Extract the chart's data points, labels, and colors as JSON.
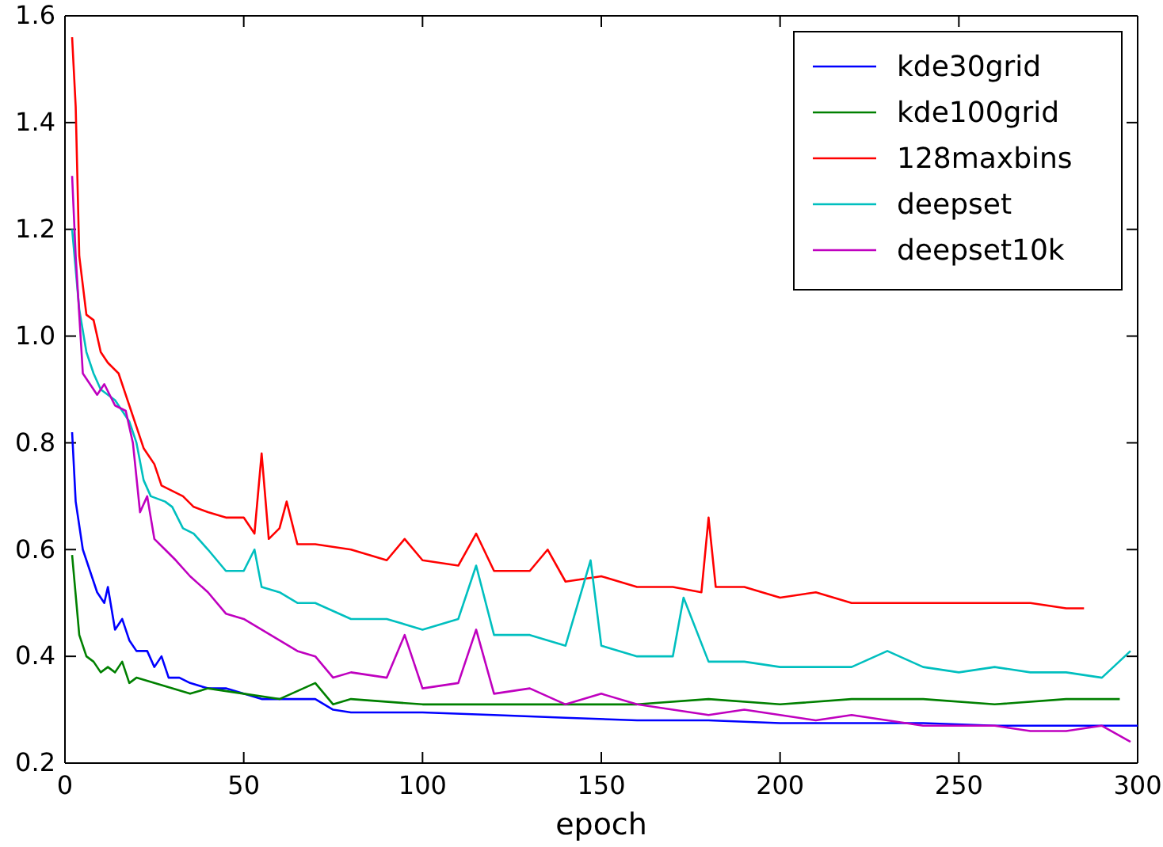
{
  "chart_data": {
    "type": "line",
    "xlabel": "epoch",
    "xlim": [
      0,
      300
    ],
    "xticks": [
      0,
      50,
      100,
      150,
      200,
      250,
      300
    ],
    "ylim": [
      0.2,
      1.6
    ],
    "yticks": [
      {
        "value": 0.2,
        "label": "0.2"
      },
      {
        "value": 0.4,
        "label": "0.4"
      },
      {
        "value": 0.6,
        "label": "0.6"
      },
      {
        "value": 0.8,
        "label": "0.8"
      },
      {
        "value": 1.0,
        "label": "1.0"
      },
      {
        "value": 1.2,
        "label": "1.2"
      },
      {
        "value": 1.4,
        "label": "1.4"
      },
      {
        "value": 1.6,
        "label": "1.6"
      }
    ],
    "grid": false,
    "legend": "top right",
    "marker": "none",
    "line_style": "solid",
    "series": [
      {
        "name": "kde30grid",
        "color": "#0000ff",
        "x": [
          2,
          3,
          5,
          7,
          9,
          11,
          12,
          14,
          16,
          18,
          20,
          23,
          25,
          27,
          29,
          32,
          35,
          40,
          45,
          50,
          55,
          60,
          70,
          75,
          80,
          100,
          120,
          140,
          160,
          180,
          200,
          220,
          240,
          260,
          280,
          300
        ],
        "values": [
          0.82,
          0.69,
          0.6,
          0.56,
          0.52,
          0.5,
          0.53,
          0.45,
          0.47,
          0.43,
          0.41,
          0.41,
          0.38,
          0.4,
          0.36,
          0.36,
          0.35,
          0.34,
          0.34,
          0.33,
          0.32,
          0.32,
          0.32,
          0.3,
          0.295,
          0.295,
          0.29,
          0.285,
          0.28,
          0.28,
          0.275,
          0.275,
          0.275,
          0.27,
          0.27,
          0.27
        ]
      },
      {
        "name": "kde100grid",
        "color": "#008000",
        "x": [
          2,
          4,
          6,
          8,
          10,
          12,
          14,
          16,
          18,
          20,
          25,
          30,
          35,
          40,
          50,
          60,
          70,
          75,
          80,
          100,
          120,
          140,
          160,
          180,
          200,
          220,
          240,
          260,
          280,
          295
        ],
        "values": [
          0.59,
          0.44,
          0.4,
          0.39,
          0.37,
          0.38,
          0.37,
          0.39,
          0.35,
          0.36,
          0.35,
          0.34,
          0.33,
          0.34,
          0.33,
          0.32,
          0.35,
          0.31,
          0.32,
          0.31,
          0.31,
          0.31,
          0.31,
          0.32,
          0.31,
          0.32,
          0.32,
          0.31,
          0.32,
          0.32
        ]
      },
      {
        "name": "128maxbins",
        "color": "#ff0000",
        "x": [
          2,
          3,
          4,
          6,
          8,
          10,
          12,
          15,
          18,
          20,
          22,
          25,
          27,
          30,
          33,
          36,
          40,
          45,
          50,
          53,
          55,
          57,
          60,
          62,
          65,
          70,
          80,
          90,
          95,
          100,
          110,
          115,
          120,
          130,
          135,
          140,
          150,
          160,
          170,
          178,
          180,
          182,
          190,
          200,
          210,
          220,
          230,
          240,
          250,
          260,
          270,
          280,
          285
        ],
        "values": [
          1.56,
          1.43,
          1.15,
          1.04,
          1.03,
          0.97,
          0.95,
          0.93,
          0.87,
          0.83,
          0.79,
          0.76,
          0.72,
          0.71,
          0.7,
          0.68,
          0.67,
          0.66,
          0.66,
          0.63,
          0.78,
          0.62,
          0.64,
          0.69,
          0.61,
          0.61,
          0.6,
          0.58,
          0.62,
          0.58,
          0.57,
          0.63,
          0.56,
          0.56,
          0.6,
          0.54,
          0.55,
          0.53,
          0.53,
          0.52,
          0.66,
          0.53,
          0.53,
          0.51,
          0.52,
          0.5,
          0.5,
          0.5,
          0.5,
          0.5,
          0.5,
          0.49,
          0.49
        ]
      },
      {
        "name": "deepset",
        "color": "#00bfbf",
        "x": [
          2,
          4,
          6,
          8,
          10,
          14,
          18,
          20,
          22,
          24,
          28,
          30,
          33,
          36,
          40,
          45,
          50,
          53,
          55,
          60,
          65,
          70,
          80,
          90,
          100,
          110,
          115,
          120,
          130,
          140,
          147,
          150,
          160,
          170,
          173,
          180,
          190,
          200,
          210,
          220,
          230,
          240,
          250,
          260,
          270,
          280,
          290,
          298
        ],
        "values": [
          1.2,
          1.05,
          0.97,
          0.93,
          0.9,
          0.88,
          0.84,
          0.8,
          0.73,
          0.7,
          0.69,
          0.68,
          0.64,
          0.63,
          0.6,
          0.56,
          0.56,
          0.6,
          0.53,
          0.52,
          0.5,
          0.5,
          0.47,
          0.47,
          0.45,
          0.47,
          0.57,
          0.44,
          0.44,
          0.42,
          0.58,
          0.42,
          0.4,
          0.4,
          0.51,
          0.39,
          0.39,
          0.38,
          0.38,
          0.38,
          0.41,
          0.38,
          0.37,
          0.38,
          0.37,
          0.37,
          0.36,
          0.41
        ]
      },
      {
        "name": "deepset10k",
        "color": "#bf00bf",
        "x": [
          2,
          3,
          5,
          7,
          9,
          11,
          14,
          17,
          19,
          21,
          23,
          25,
          28,
          31,
          35,
          40,
          45,
          50,
          55,
          60,
          65,
          70,
          75,
          80,
          90,
          95,
          100,
          110,
          115,
          120,
          130,
          140,
          150,
          160,
          170,
          180,
          190,
          200,
          210,
          220,
          230,
          240,
          250,
          260,
          270,
          280,
          290,
          298
        ],
        "values": [
          1.3,
          1.15,
          0.93,
          0.91,
          0.89,
          0.91,
          0.87,
          0.86,
          0.8,
          0.67,
          0.7,
          0.62,
          0.6,
          0.58,
          0.55,
          0.52,
          0.48,
          0.47,
          0.45,
          0.43,
          0.41,
          0.4,
          0.36,
          0.37,
          0.36,
          0.44,
          0.34,
          0.35,
          0.45,
          0.33,
          0.34,
          0.31,
          0.33,
          0.31,
          0.3,
          0.29,
          0.3,
          0.29,
          0.28,
          0.29,
          0.28,
          0.27,
          0.27,
          0.27,
          0.26,
          0.26,
          0.27,
          0.24
        ]
      }
    ]
  }
}
